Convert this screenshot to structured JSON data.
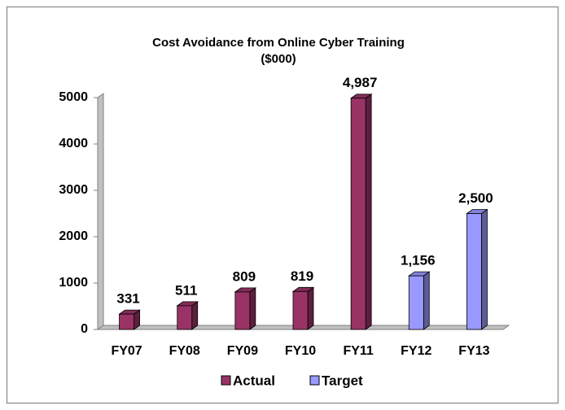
{
  "chart_data": {
    "type": "bar3d",
    "title": "Cost Avoidance from Online Cyber Training",
    "subtitle": "($000)",
    "categories": [
      "FY07",
      "FY08",
      "FY09",
      "FY10",
      "FY11",
      "FY12",
      "FY13"
    ],
    "series": [
      {
        "name": "Actual",
        "color": "#993366",
        "values": [
          331,
          511,
          809,
          819,
          4987,
          null,
          null
        ],
        "value_labels": [
          "331",
          "511",
          "809",
          "819",
          "4,987",
          null,
          null
        ]
      },
      {
        "name": "Target",
        "color": "#9999ff",
        "values": [
          null,
          null,
          null,
          null,
          null,
          1156,
          2500
        ],
        "value_labels": [
          null,
          null,
          null,
          null,
          null,
          "1,156",
          "2,500"
        ]
      }
    ],
    "ylim": [
      0,
      5000
    ],
    "yticks": [
      0,
      1000,
      2000,
      3000,
      4000,
      5000
    ],
    "grid": false,
    "legend": "bottom"
  }
}
